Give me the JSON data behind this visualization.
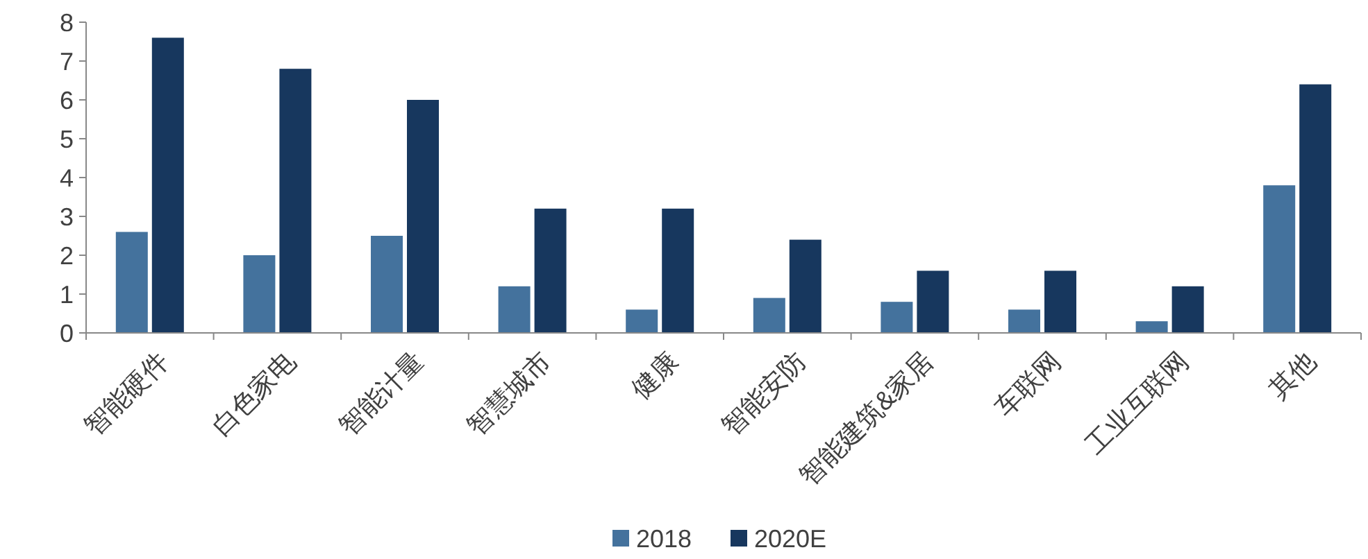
{
  "chart_data": {
    "type": "bar",
    "categories": [
      "智能硬件",
      "白色家电",
      "智能计量",
      "智慧城市",
      "健康",
      "智能安防",
      "智能建筑&家居",
      "车联网",
      "工业互联网",
      "其他"
    ],
    "series": [
      {
        "name": "2018",
        "color": "#44729d",
        "values": [
          2.6,
          2.0,
          2.5,
          1.2,
          0.6,
          0.9,
          0.8,
          0.6,
          0.3,
          3.8
        ]
      },
      {
        "name": "2020E",
        "color": "#17375e",
        "values": [
          7.6,
          6.8,
          6.0,
          3.2,
          3.2,
          2.4,
          1.6,
          1.6,
          1.2,
          6.4
        ]
      }
    ],
    "ylim": [
      0,
      8
    ],
    "yticks": [
      0,
      1,
      2,
      3,
      4,
      5,
      6,
      7,
      8
    ],
    "grid": false,
    "legend": "bottom"
  }
}
